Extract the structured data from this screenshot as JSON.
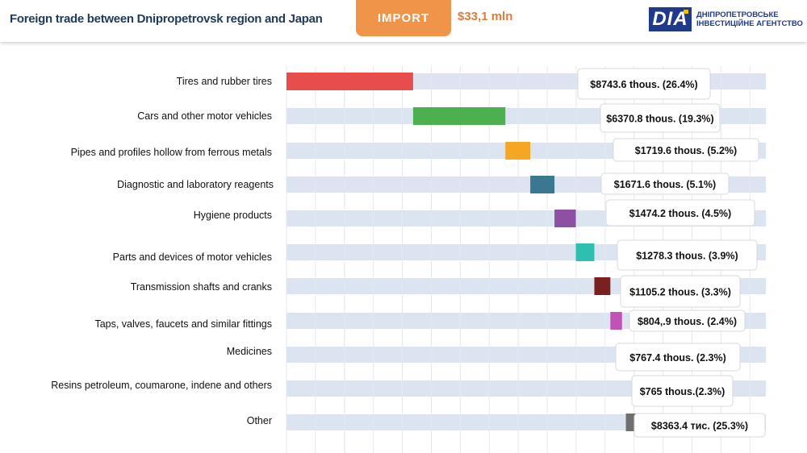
{
  "header": {
    "title": "Foreign trade between Dnipropetrovsk region and Japan",
    "tab_label": "IMPORT",
    "total": "$33,1 mln",
    "logo": {
      "mark": "DIA",
      "line1": "ДНІПРОПЕТРОВСЬКЕ",
      "line2": "ІНВЕСТИЦІЙНЕ АГЕНТСТВО"
    }
  },
  "colors": {
    "track": "#dbe4f0",
    "header_title": "#1f3a5a",
    "tab": "#f0944a",
    "total": "#e07b39",
    "logo": "#1f3a8a"
  },
  "chart_data": {
    "type": "bar",
    "subtype": "waterfall",
    "unit": "thousand USD",
    "total": 33100,
    "categories": [
      "Tires and rubber tires",
      "Cars and other motor vehicles",
      "Pipes and profiles hollow from ferrous metals",
      "Diagnostic and laboratory reagents",
      "Hygiene products",
      "Parts and devices of motor vehicles",
      "Transmission shafts and cranks",
      "Taps, valves, faucets and similar fittings",
      "Medicines",
      "Resins petroleum, coumarone, indene and others",
      "Other"
    ],
    "values": [
      8743.6,
      6370.8,
      1719.6,
      1671.6,
      1474.2,
      1278.3,
      1105.2,
      804.9,
      767.4,
      765,
      8363.4
    ],
    "shares": [
      26.4,
      19.3,
      5.2,
      5.1,
      4.5,
      3.9,
      3.3,
      2.4,
      2.3,
      2.3,
      25.3
    ],
    "value_labels": [
      "$8743.6 thous. (26.4%)",
      "$6370.8 thous. (19.3%)",
      "$1719.6 thous.  (5.2%)",
      "$1671.6 thous. (5.1%)",
      "$1474.2 thous. (4.5%)",
      "$1278.3 thous. (3.9%)",
      "$1105.2 thous. (3.3%)",
      "$804,.9 thous. (2.4%)",
      "$767.4 thous. (2.3%)",
      "$765 thous.(2.3%)",
      "$8363.4 тис.  (25.3%)"
    ],
    "bar_colors": [
      "#e84c4c",
      "#4caf50",
      "#f5a623",
      "#3a7891",
      "#8e50a5",
      "#2fbfb0",
      "#7a2020",
      "#c053b5",
      "#e07b39",
      "#2a78c0",
      "#6f6f6f"
    ],
    "xlim": [
      0,
      33100
    ],
    "grid": true,
    "legend": "none"
  }
}
